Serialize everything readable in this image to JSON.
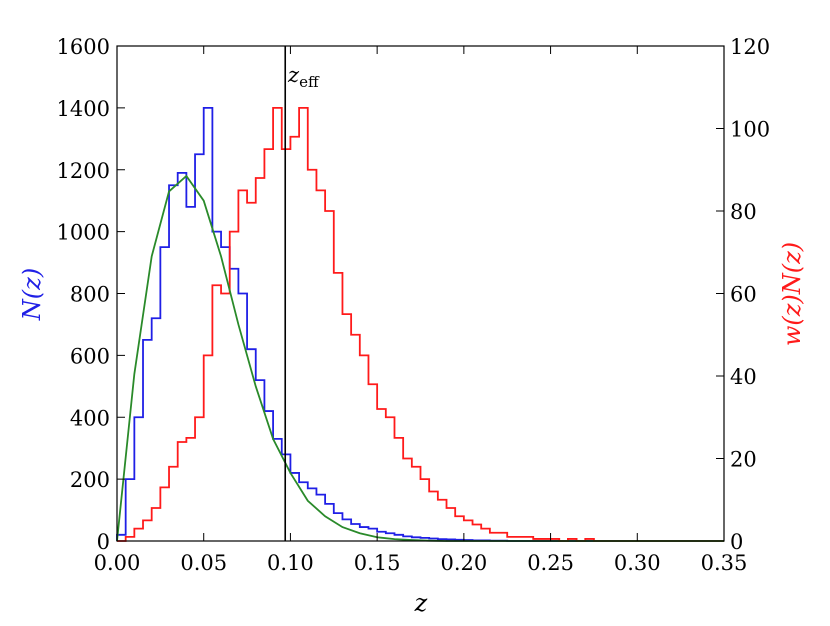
{
  "chart_data": {
    "type": "line",
    "xlabel": "z",
    "ylabel_left": "N(z)",
    "ylabel_right": "w(z)N(z)",
    "xlim": [
      0.0,
      0.35
    ],
    "ylim_left": [
      0,
      1600
    ],
    "ylim_right": [
      0,
      120
    ],
    "x_ticks": [
      "0.00",
      "0.05",
      "0.10",
      "0.15",
      "0.20",
      "0.25",
      "0.30",
      "0.35"
    ],
    "y_ticks_left": [
      "0",
      "200",
      "400",
      "600",
      "800",
      "1000",
      "1200",
      "1400",
      "1600"
    ],
    "y_ticks_right": [
      "0",
      "20",
      "40",
      "60",
      "80",
      "100",
      "120"
    ],
    "annotation": {
      "text": "z",
      "sub": "eff",
      "x": 0.097
    },
    "colors": {
      "nz": "#1f1fe6",
      "wnz": "#ff1a1a",
      "fit": "#2a8a2a",
      "line": "#000000"
    },
    "series": [
      {
        "axis": "left",
        "x": [
          0.0,
          0.005,
          0.01,
          0.015,
          0.02,
          0.025,
          0.03,
          0.035,
          0.04,
          0.045,
          0.05,
          0.055,
          0.06,
          0.065,
          0.07,
          0.075,
          0.08,
          0.085,
          0.09,
          0.095,
          0.1,
          0.105,
          0.11,
          0.115,
          0.12,
          0.125,
          0.13,
          0.135,
          0.14,
          0.145,
          0.15,
          0.155,
          0.16,
          0.165,
          0.17,
          0.175,
          0.18,
          0.185,
          0.19,
          0.195,
          0.2,
          0.205,
          0.21,
          0.215,
          0.22
        ],
        "values": [
          20,
          200,
          400,
          650,
          720,
          950,
          1150,
          1190,
          1080,
          1250,
          1400,
          1000,
          950,
          880,
          800,
          620,
          520,
          420,
          330,
          280,
          220,
          190,
          170,
          150,
          120,
          90,
          70,
          55,
          45,
          40,
          30,
          25,
          20,
          15,
          12,
          10,
          8,
          6,
          5,
          4,
          3,
          2,
          2,
          1,
          1
        ]
      },
      {
        "axis": "right",
        "x": [
          0.0,
          0.005,
          0.01,
          0.015,
          0.02,
          0.025,
          0.03,
          0.035,
          0.04,
          0.045,
          0.05,
          0.055,
          0.06,
          0.065,
          0.07,
          0.075,
          0.08,
          0.085,
          0.09,
          0.095,
          0.1,
          0.105,
          0.11,
          0.115,
          0.12,
          0.125,
          0.13,
          0.135,
          0.14,
          0.145,
          0.15,
          0.155,
          0.16,
          0.165,
          0.17,
          0.175,
          0.18,
          0.185,
          0.19,
          0.195,
          0.2,
          0.205,
          0.21,
          0.215,
          0.22,
          0.225,
          0.23,
          0.235,
          0.24,
          0.245,
          0.25,
          0.255,
          0.26,
          0.265,
          0.27,
          0.275
        ],
        "values": [
          0,
          1,
          3,
          5,
          8,
          13,
          18,
          24,
          25,
          30,
          45,
          62,
          60,
          75,
          85,
          82,
          88,
          95,
          105,
          95,
          98,
          105,
          90,
          85,
          80,
          65,
          55,
          50,
          45,
          38,
          32,
          30,
          25,
          20,
          18,
          15,
          12,
          10,
          8,
          6,
          5,
          4,
          3,
          2,
          2,
          1,
          1,
          1,
          0.5,
          0.5,
          0.5,
          0,
          0.5,
          0,
          0.5,
          0
        ]
      },
      {
        "axis": "left",
        "x": [
          0.0,
          0.01,
          0.02,
          0.03,
          0.04,
          0.05,
          0.06,
          0.07,
          0.08,
          0.09,
          0.1,
          0.11,
          0.12,
          0.13,
          0.14,
          0.15,
          0.16,
          0.17,
          0.18,
          0.19,
          0.2
        ],
        "values": [
          0,
          540,
          920,
          1130,
          1180,
          1100,
          920,
          700,
          500,
          330,
          220,
          130,
          80,
          45,
          25,
          12,
          6,
          3,
          1,
          0,
          0
        ]
      }
    ]
  }
}
